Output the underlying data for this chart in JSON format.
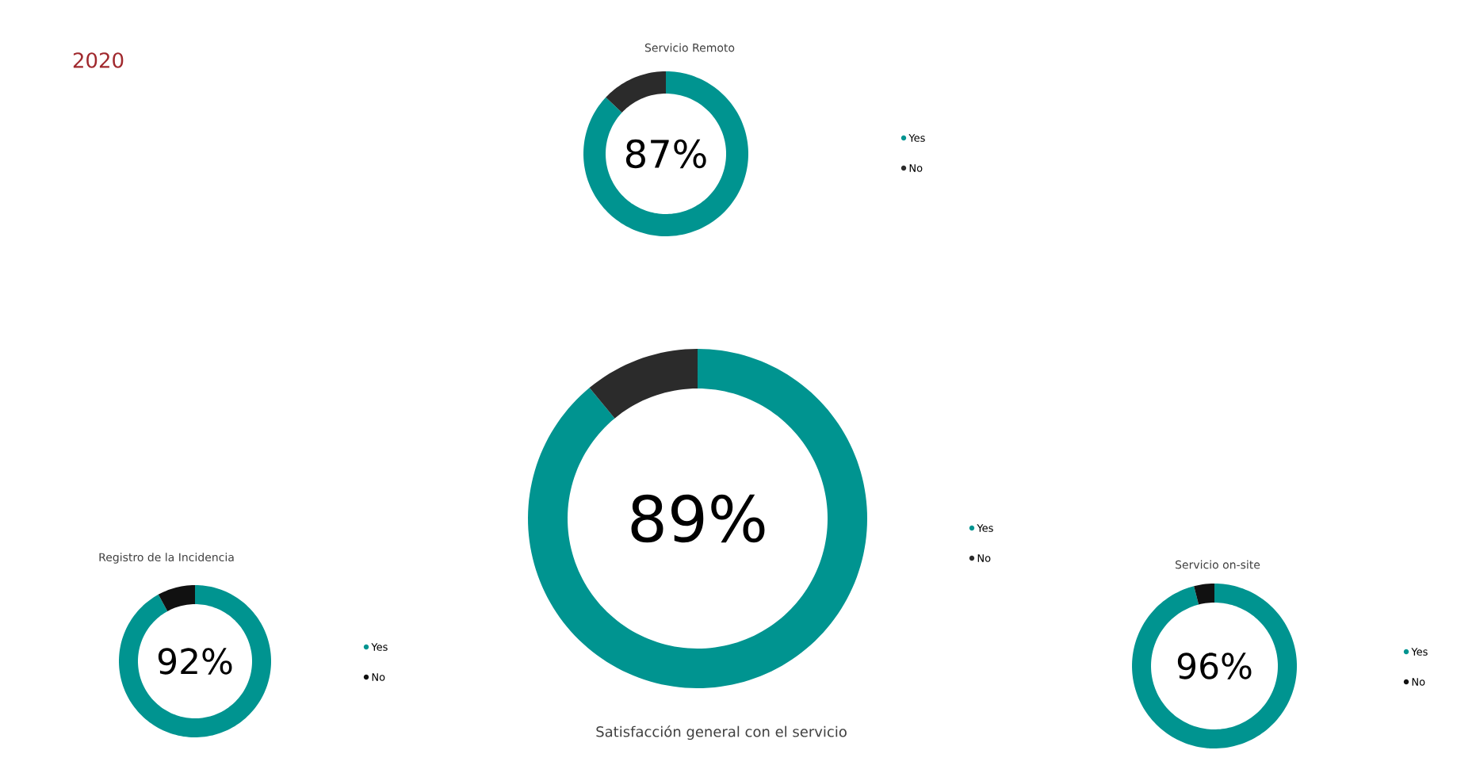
{
  "chart_data": [
    {
      "type": "other",
      "title": "2020"
    },
    {
      "type": "donut",
      "title": "Servicio Remoto",
      "categories": [
        "Yes",
        "No"
      ],
      "values": [
        87,
        13
      ],
      "colors": [
        "#009490",
        "#2b2b2b"
      ],
      "value_labels": [
        "87%",
        null
      ],
      "legend": "right"
    },
    {
      "type": "donut",
      "title": "Satisfacción general con el servicio",
      "categories": [
        "Yes",
        "No"
      ],
      "values": [
        89,
        11
      ],
      "colors": [
        "#009490",
        "#2b2b2b"
      ],
      "value_labels": [
        "89%",
        null
      ],
      "legend": "right"
    },
    {
      "type": "donut",
      "title": "Registro de la Incidencia",
      "categories": [
        "Yes",
        "No"
      ],
      "values": [
        92,
        8
      ],
      "colors": [
        "#009490",
        "#111111"
      ],
      "value_labels": [
        "92%",
        null
      ],
      "legend": "right"
    },
    {
      "type": "donut",
      "title": "Servicio on-site",
      "categories": [
        "Yes",
        "No"
      ],
      "values": [
        96,
        4
      ],
      "colors": [
        "#009490",
        "#111111"
      ],
      "value_labels": [
        "96%",
        null
      ],
      "legend": "right"
    }
  ]
}
